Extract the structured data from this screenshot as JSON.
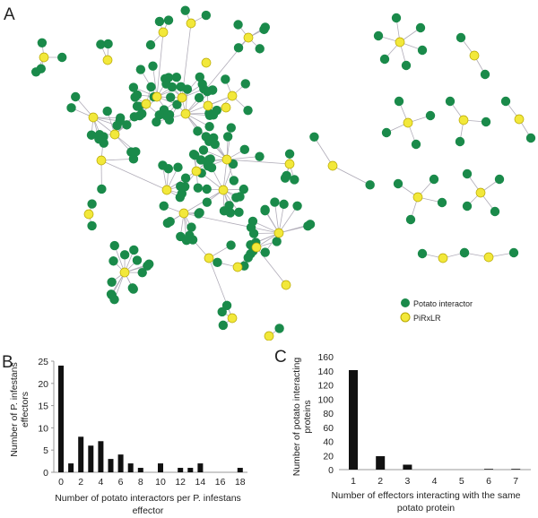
{
  "panels": {
    "a": "A",
    "b": "B",
    "c": "C"
  },
  "legend": {
    "items": [
      {
        "label": "Potato interactor",
        "color": "#1a8a4a"
      },
      {
        "label": "PiRxLR",
        "color": "#f2e83a"
      }
    ]
  },
  "colors": {
    "interactor": "#1a8a4a",
    "effector": "#f2e83a",
    "edge": "#b0acb8",
    "bar": "#111111"
  },
  "chart_data": [
    {
      "type": "bar",
      "panel": "B",
      "x": [
        0,
        1,
        2,
        3,
        4,
        5,
        6,
        7,
        8,
        10,
        12,
        13,
        14,
        18
      ],
      "values": [
        24,
        2,
        8,
        6,
        7,
        3,
        4,
        2,
        1,
        2,
        1,
        1,
        2,
        1
      ],
      "xticks": [
        "0",
        "2",
        "4",
        "6",
        "8",
        "10",
        "12",
        "14",
        "16",
        "18"
      ],
      "yticks": [
        "0",
        "5",
        "10",
        "15",
        "20",
        "25"
      ],
      "xlim": [
        0,
        18
      ],
      "ylim": [
        0,
        25
      ],
      "xlabel_line1": "Number of potato interactors per P. infestans",
      "xlabel_line2": "effector",
      "ylabel_line1": "Number of P. infestans",
      "ylabel_line2": "effectors"
    },
    {
      "type": "bar",
      "panel": "C",
      "categories": [
        "1",
        "2",
        "3",
        "4",
        "5",
        "6",
        "7"
      ],
      "values": [
        141,
        19,
        7,
        0,
        0,
        1,
        1
      ],
      "yticks": [
        "0",
        "20",
        "40",
        "60",
        "80",
        "100",
        "120",
        "140",
        "160"
      ],
      "ylim": [
        0,
        160
      ],
      "xlabel_line1": "Number of effectors interacting with the same",
      "xlabel_line2": "potato protein",
      "ylabel_line1": "Number of potato interacting",
      "ylabel_line2": "proteins"
    }
  ]
}
